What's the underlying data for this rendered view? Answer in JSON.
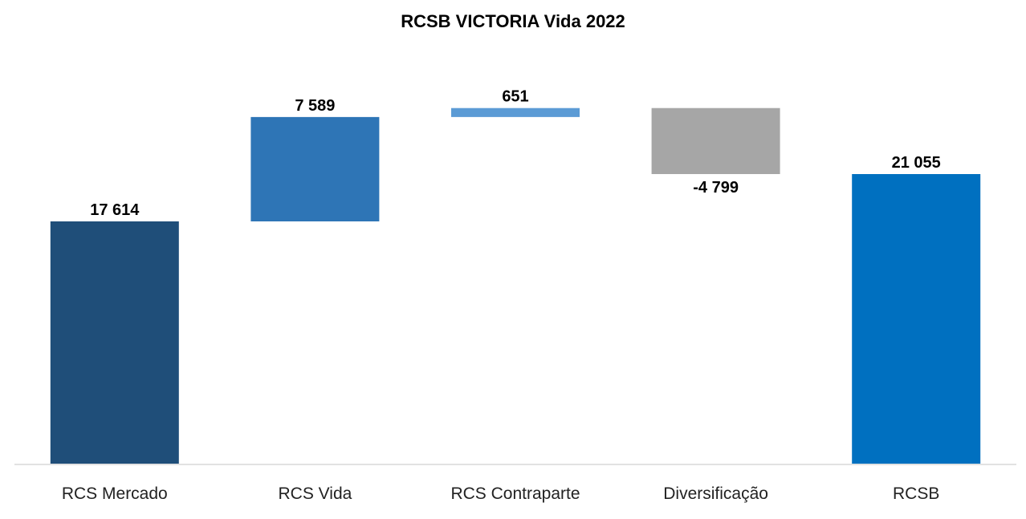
{
  "chart_data": {
    "type": "bar",
    "subtype": "waterfall",
    "title": "RCSB VICTORIA Vida 2022",
    "xlabel": "",
    "ylabel": "",
    "ylim": [
      0,
      26000
    ],
    "categories": [
      "RCS Mercado",
      "RCS Vida",
      "RCS Contraparte",
      "Diversificação",
      "RCSB"
    ],
    "values": [
      17614,
      7589,
      651,
      -4799,
      21055
    ],
    "value_labels": [
      "17 614",
      "7 589",
      "651",
      "-4 799",
      "21 055"
    ],
    "bar_kinds": [
      "total",
      "delta",
      "delta",
      "delta",
      "total"
    ],
    "colors": [
      "#1f4e79",
      "#2e75b6",
      "#5b9bd5",
      "#a6a6a6",
      "#0070c0"
    ],
    "grid": false,
    "legend": "none"
  }
}
